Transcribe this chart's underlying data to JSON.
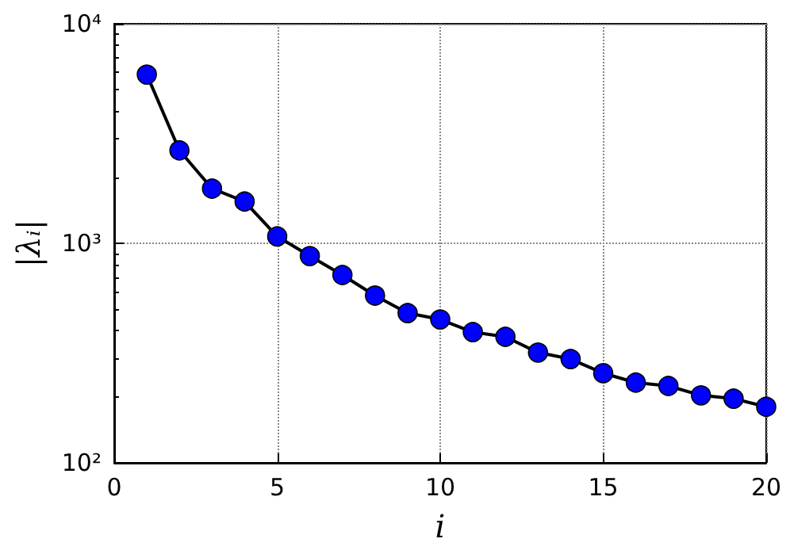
{
  "chart_data": {
    "type": "line",
    "xlabel": "i",
    "ylabel": "|λᵢ|",
    "x": [
      1,
      2,
      3,
      4,
      5,
      6,
      7,
      8,
      9,
      10,
      11,
      12,
      13,
      14,
      15,
      16,
      17,
      18,
      19,
      20
    ],
    "series": [
      {
        "color": "#0000ff",
        "values": [
          5870,
          2650,
          1775,
          1550,
          1075,
          875,
          717,
          578,
          481,
          450,
          394,
          375,
          318,
          297,
          256,
          232,
          224,
          203,
          196,
          180
        ]
      }
    ],
    "xlim": [
      0,
      20
    ],
    "xticks": [
      0,
      5,
      10,
      15,
      20
    ],
    "ylim": [
      100,
      10000
    ],
    "yticks": [
      {
        "value": 100,
        "label": "10²"
      },
      {
        "value": 1000,
        "label": "10³"
      },
      {
        "value": 10000,
        "label": "10⁴"
      }
    ],
    "log": "y",
    "grid": true,
    "marker": "circle",
    "line_style": "solid"
  }
}
